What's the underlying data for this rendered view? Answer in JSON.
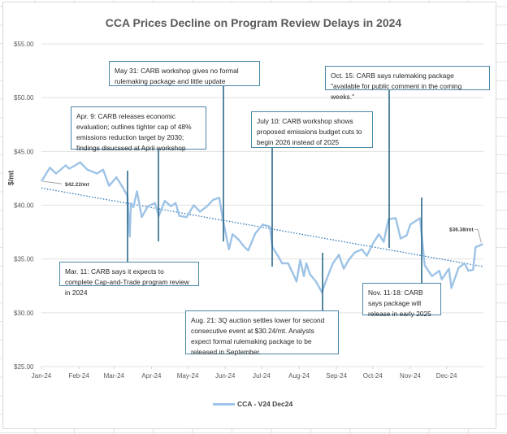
{
  "chart_data": {
    "type": "line",
    "title": "CCA Prices Decline on Program Review Delays in 2024",
    "xlabel": "",
    "ylabel": "$/mt",
    "ylim": [
      25,
      55
    ],
    "yticks": [
      "$25.00",
      "$30.00",
      "$35.00",
      "$40.00",
      "$45.00",
      "$50.00",
      "$55.00"
    ],
    "ytick_values": [
      25,
      30,
      35,
      40,
      45,
      50,
      55
    ],
    "xticks": [
      "Jan-24",
      "Feb-24",
      "Mar-24",
      "Apr-24",
      "May-24",
      "Jun-24",
      "Jul-24",
      "Aug-24",
      "Sep-24",
      "Oct-24",
      "Nov-24",
      "Dec-24"
    ],
    "xtick_dates": [
      "2024-01-01",
      "2024-02-01",
      "2024-03-01",
      "2024-04-01",
      "2024-05-01",
      "2024-06-01",
      "2024-07-01",
      "2024-08-01",
      "2024-09-01",
      "2024-10-01",
      "2024-11-01",
      "2024-12-01"
    ],
    "grid": "horizontal",
    "legend_position": "bottom",
    "series": [
      {
        "name": "CCA - V24 Dec24",
        "color": "#9dc3e6",
        "x": [
          "2024-01-01",
          "2024-01-08",
          "2024-01-13",
          "2024-01-21",
          "2024-01-24",
          "2024-01-29",
          "2024-02-02",
          "2024-02-08",
          "2024-02-16",
          "2024-02-21",
          "2024-02-26",
          "2024-03-03",
          "2024-03-08",
          "2024-03-12",
          "2024-03-14",
          "2024-03-15",
          "2024-03-17",
          "2024-03-20",
          "2024-03-24",
          "2024-03-29",
          "2024-04-04",
          "2024-04-07",
          "2024-04-12",
          "2024-04-17",
          "2024-04-21",
          "2024-04-24",
          "2024-04-30",
          "2024-05-06",
          "2024-05-11",
          "2024-05-17",
          "2024-05-22",
          "2024-05-27",
          "2024-05-30",
          "2024-06-04",
          "2024-06-07",
          "2024-06-12",
          "2024-06-17",
          "2024-06-20",
          "2024-06-26",
          "2024-07-02",
          "2024-07-08",
          "2024-07-10",
          "2024-07-14",
          "2024-07-18",
          "2024-07-23",
          "2024-07-28",
          "2024-07-30",
          "2024-08-02",
          "2024-08-05",
          "2024-08-07",
          "2024-08-10",
          "2024-08-15",
          "2024-08-20",
          "2024-08-23",
          "2024-08-29",
          "2024-09-03",
          "2024-09-07",
          "2024-09-11",
          "2024-09-16",
          "2024-09-22",
          "2024-09-26",
          "2024-10-02",
          "2024-10-06",
          "2024-10-10",
          "2024-10-14",
          "2024-10-20",
          "2024-10-24",
          "2024-10-29",
          "2024-11-01",
          "2024-11-09",
          "2024-11-13",
          "2024-11-19",
          "2024-11-25",
          "2024-11-27",
          "2024-12-03",
          "2024-12-05",
          "2024-12-11",
          "2024-12-16",
          "2024-12-19",
          "2024-12-23",
          "2024-12-25",
          "2024-12-31"
        ],
        "y": [
          42.22,
          43.5,
          42.95,
          43.7,
          43.4,
          43.7,
          44.0,
          43.3,
          42.95,
          43.3,
          41.8,
          42.6,
          41.7,
          40.9,
          37.1,
          40.2,
          39.8,
          41.3,
          38.9,
          39.9,
          40.2,
          39.0,
          40.4,
          39.9,
          40.2,
          39.0,
          38.9,
          40.0,
          39.4,
          39.9,
          40.5,
          40.7,
          38.7,
          35.9,
          37.3,
          36.8,
          36.1,
          35.8,
          37.4,
          38.2,
          38.0,
          36.1,
          35.4,
          34.6,
          34.6,
          33.4,
          32.9,
          34.9,
          33.4,
          34.6,
          33.6,
          32.9,
          31.9,
          32.9,
          34.6,
          35.4,
          34.1,
          34.9,
          35.6,
          35.9,
          35.3,
          36.6,
          37.3,
          36.6,
          38.7,
          38.8,
          36.9,
          37.2,
          38.2,
          38.8,
          34.4,
          33.4,
          33.9,
          33.1,
          34.1,
          32.3,
          34.2,
          34.6,
          33.9,
          34.0,
          36.1,
          36.38
        ]
      }
    ],
    "trendline": {
      "type": "linear",
      "color": "#2e75b6",
      "start": [
        "2024-01-01",
        41.6
      ],
      "end": [
        "2024-12-31",
        34.3
      ]
    },
    "data_labels": [
      {
        "text": "$42.22/mt",
        "date": "2024-01-01",
        "value": 42.22
      },
      {
        "text": "$36.38/mt",
        "date": "2024-12-31",
        "value": 36.38
      }
    ],
    "annotations": [
      {
        "date": "2024-03-11",
        "text": "Mar. 11: CARB says it expects to complete Cap-and-Trade program review in 2024"
      },
      {
        "date": "2024-04-09",
        "text": "Apr. 9: CARB releases economic evaluation; outlines tighter cap of 48% emissions reduction target by 2030; findings disucssed at April workshop"
      },
      {
        "date": "2024-05-31",
        "text": "May 31: CARB workshop gives no formal rulemaking package and little update"
      },
      {
        "date": "2024-07-10",
        "text": "July 10: CARB workshop shows proposed emissions budget cuts to begin 2026 instead of 2025"
      },
      {
        "date": "2024-08-21",
        "text": "Aug. 21: 3Q auction settles lower for second consecutive event at $30.24/mt. Analysts expect formal rulemaking package to be released in September."
      },
      {
        "date": "2024-10-15",
        "text": "Oct. 15: CARB says rulemaking package \"available for public comment in the coming weeks.\""
      },
      {
        "date": "2024-11-11",
        "text": "Nov. 11-18: CARB says package will release in early 2025"
      }
    ]
  }
}
